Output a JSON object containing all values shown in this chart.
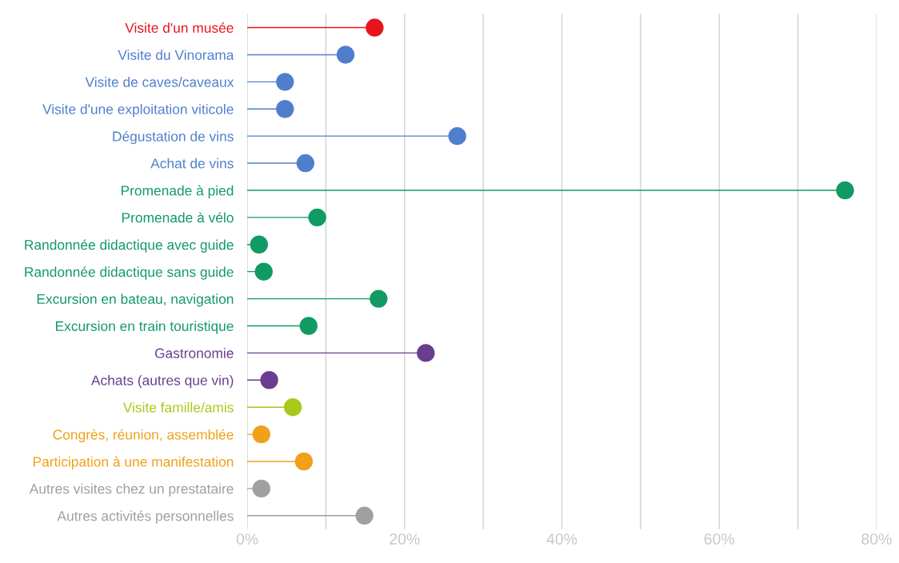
{
  "chart_data": {
    "type": "lollipop",
    "orientation": "horizontal",
    "categories": [
      "Visite d'un musée",
      "Visite du Vinorama",
      "Visite de caves/caveaux",
      "Visite d'une exploitation viticole",
      "Dégustation de vins",
      "Achat de vins",
      "Promenade à pied",
      "Promenade à vélo",
      "Randonnée didactique avec guide",
      "Randonnée didactique sans guide",
      "Excursion en bateau, navigation",
      "Excursion en train touristique",
      "Gastronomie",
      "Achats (autres que vin)",
      "Visite famille/amis",
      "Congrès, réunion, assemblée",
      "Participation à une manifestation",
      "Autres visites chez un prestataire",
      "Autres activités personnelles"
    ],
    "values": [
      16.2,
      12.5,
      4.8,
      4.8,
      26.7,
      7.4,
      76.0,
      8.9,
      1.5,
      2.1,
      16.7,
      7.8,
      22.7,
      2.8,
      5.8,
      1.8,
      7.2,
      1.8,
      14.9
    ],
    "colors": [
      "#e8141c",
      "#4f7fcc",
      "#4f7fcc",
      "#4f7fcc",
      "#4f7fcc",
      "#4f7fcc",
      "#129a64",
      "#129a64",
      "#129a64",
      "#129a64",
      "#129a64",
      "#129a64",
      "#6a3d8f",
      "#6a3d8f",
      "#a8c81a",
      "#f0a01a",
      "#f0a01a",
      "#a0a0a0",
      "#a0a0a0"
    ],
    "xlim": [
      0,
      80
    ],
    "xticks": [
      {
        "value": 0,
        "label": "0%"
      },
      {
        "value": 10,
        "label": null
      },
      {
        "value": 20,
        "label": "20%"
      },
      {
        "value": 30,
        "label": null
      },
      {
        "value": 40,
        "label": "40%"
      },
      {
        "value": 50,
        "label": null
      },
      {
        "value": 60,
        "label": "60%"
      },
      {
        "value": 70,
        "label": null
      },
      {
        "value": 80,
        "label": "80%"
      }
    ],
    "grid": "x",
    "marker": "circle",
    "legend": false
  }
}
